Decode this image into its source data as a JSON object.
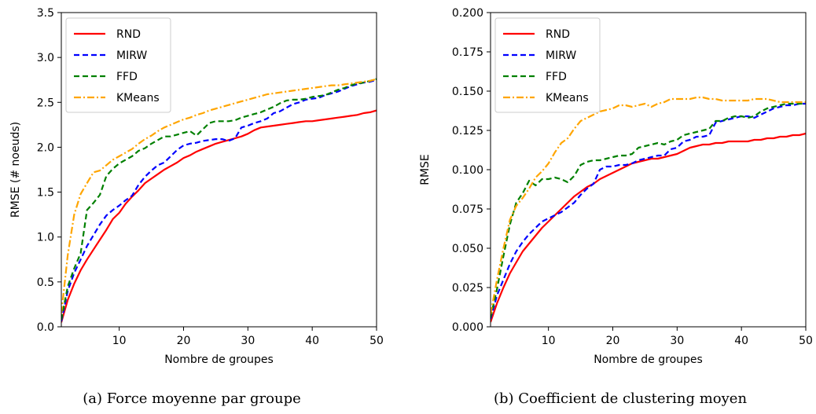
{
  "chart_data": [
    {
      "type": "line",
      "caption": "(a) Force moyenne par groupe",
      "xlabel": "Nombre de groupes",
      "ylabel": "RMSE (# noeuds)",
      "xlim": [
        1,
        50
      ],
      "ylim": [
        0,
        3.5
      ],
      "xticks": [
        "10",
        "20",
        "30",
        "40",
        "50"
      ],
      "yticks": [
        "0.0",
        "0.5",
        "1.0",
        "1.5",
        "2.0",
        "2.5",
        "3.0",
        "3.5"
      ],
      "legend_position": "top-left",
      "x": [
        1,
        2,
        3,
        4,
        5,
        6,
        7,
        8,
        9,
        10,
        11,
        12,
        13,
        14,
        15,
        16,
        17,
        18,
        19,
        20,
        21,
        22,
        23,
        24,
        25,
        26,
        27,
        28,
        29,
        30,
        31,
        32,
        33,
        34,
        35,
        36,
        37,
        38,
        39,
        40,
        41,
        42,
        43,
        44,
        45,
        46,
        47,
        48,
        49,
        50
      ],
      "series": [
        {
          "name": "RND",
          "color": "#ff0000",
          "dash": "solid",
          "values": [
            0.05,
            0.3,
            0.48,
            0.63,
            0.75,
            0.86,
            0.97,
            1.08,
            1.2,
            1.27,
            1.37,
            1.45,
            1.52,
            1.6,
            1.65,
            1.7,
            1.75,
            1.79,
            1.83,
            1.88,
            1.91,
            1.95,
            1.98,
            2.01,
            2.04,
            2.06,
            2.08,
            2.1,
            2.12,
            2.15,
            2.19,
            2.22,
            2.23,
            2.24,
            2.25,
            2.26,
            2.27,
            2.28,
            2.29,
            2.29,
            2.3,
            2.31,
            2.32,
            2.33,
            2.34,
            2.35,
            2.36,
            2.38,
            2.39,
            2.41
          ]
        },
        {
          "name": "MIRW",
          "color": "#0000ff",
          "dash": "dashed",
          "values": [
            0.06,
            0.4,
            0.6,
            0.75,
            0.9,
            1.02,
            1.14,
            1.24,
            1.3,
            1.35,
            1.41,
            1.46,
            1.58,
            1.67,
            1.74,
            1.8,
            1.83,
            1.9,
            1.97,
            2.02,
            2.04,
            2.05,
            2.07,
            2.08,
            2.09,
            2.09,
            2.07,
            2.1,
            2.22,
            2.24,
            2.27,
            2.29,
            2.32,
            2.38,
            2.4,
            2.44,
            2.48,
            2.5,
            2.53,
            2.54,
            2.55,
            2.58,
            2.6,
            2.62,
            2.65,
            2.68,
            2.7,
            2.72,
            2.73,
            2.75
          ]
        },
        {
          "name": "FFD",
          "color": "#008000",
          "dash": "dashed",
          "values": [
            0.08,
            0.45,
            0.65,
            0.82,
            1.3,
            1.38,
            1.47,
            1.68,
            1.76,
            1.82,
            1.86,
            1.9,
            1.96,
            1.99,
            2.04,
            2.08,
            2.12,
            2.12,
            2.14,
            2.16,
            2.18,
            2.13,
            2.2,
            2.27,
            2.29,
            2.29,
            2.29,
            2.3,
            2.33,
            2.35,
            2.37,
            2.39,
            2.42,
            2.45,
            2.49,
            2.52,
            2.53,
            2.53,
            2.54,
            2.56,
            2.57,
            2.58,
            2.61,
            2.64,
            2.66,
            2.69,
            2.71,
            2.72,
            2.74,
            2.76
          ]
        },
        {
          "name": "KMeans",
          "color": "#ffa500",
          "dash": "dashdot",
          "values": [
            0.15,
            0.8,
            1.25,
            1.48,
            1.6,
            1.72,
            1.74,
            1.8,
            1.86,
            1.9,
            1.94,
            1.98,
            2.04,
            2.09,
            2.13,
            2.18,
            2.22,
            2.25,
            2.28,
            2.31,
            2.33,
            2.36,
            2.38,
            2.41,
            2.43,
            2.45,
            2.47,
            2.49,
            2.51,
            2.53,
            2.55,
            2.57,
            2.59,
            2.6,
            2.61,
            2.62,
            2.63,
            2.64,
            2.65,
            2.66,
            2.67,
            2.68,
            2.69,
            2.69,
            2.7,
            2.71,
            2.72,
            2.73,
            2.74,
            2.76
          ]
        }
      ]
    },
    {
      "type": "line",
      "caption": "(b) Coefficient de clustering moyen",
      "xlabel": "Nombre de groupes",
      "ylabel": "RMSE",
      "xlim": [
        1,
        50
      ],
      "ylim": [
        0,
        0.2
      ],
      "xticks": [
        "10",
        "20",
        "30",
        "40",
        "50"
      ],
      "yticks": [
        "0.000",
        "0.025",
        "0.050",
        "0.075",
        "0.100",
        "0.125",
        "0.150",
        "0.175",
        "0.200"
      ],
      "legend_position": "top-left",
      "x": [
        1,
        2,
        3,
        4,
        5,
        6,
        7,
        8,
        9,
        10,
        11,
        12,
        13,
        14,
        15,
        16,
        17,
        18,
        19,
        20,
        21,
        22,
        23,
        24,
        25,
        26,
        27,
        28,
        29,
        30,
        31,
        32,
        33,
        34,
        35,
        36,
        37,
        38,
        39,
        40,
        41,
        42,
        43,
        44,
        45,
        46,
        47,
        48,
        49,
        50
      ],
      "series": [
        {
          "name": "RND",
          "color": "#ff0000",
          "dash": "solid",
          "values": [
            0.003,
            0.015,
            0.025,
            0.034,
            0.041,
            0.048,
            0.053,
            0.058,
            0.063,
            0.067,
            0.071,
            0.075,
            0.079,
            0.083,
            0.086,
            0.089,
            0.091,
            0.094,
            0.096,
            0.098,
            0.1,
            0.102,
            0.104,
            0.105,
            0.106,
            0.107,
            0.107,
            0.108,
            0.109,
            0.11,
            0.112,
            0.114,
            0.115,
            0.116,
            0.116,
            0.117,
            0.117,
            0.118,
            0.118,
            0.118,
            0.118,
            0.119,
            0.119,
            0.12,
            0.12,
            0.121,
            0.121,
            0.122,
            0.122,
            0.123
          ]
        },
        {
          "name": "MIRW",
          "color": "#0000ff",
          "dash": "dashed",
          "values": [
            0.005,
            0.02,
            0.03,
            0.04,
            0.048,
            0.054,
            0.059,
            0.063,
            0.067,
            0.069,
            0.071,
            0.073,
            0.076,
            0.079,
            0.084,
            0.088,
            0.091,
            0.1,
            0.102,
            0.102,
            0.103,
            0.103,
            0.104,
            0.106,
            0.107,
            0.108,
            0.109,
            0.109,
            0.113,
            0.114,
            0.118,
            0.119,
            0.121,
            0.121,
            0.122,
            0.13,
            0.131,
            0.132,
            0.133,
            0.134,
            0.134,
            0.133,
            0.135,
            0.137,
            0.139,
            0.14,
            0.141,
            0.141,
            0.142,
            0.142
          ]
        },
        {
          "name": "FFD",
          "color": "#008000",
          "dash": "dashed",
          "values": [
            0.006,
            0.024,
            0.045,
            0.065,
            0.079,
            0.085,
            0.093,
            0.09,
            0.094,
            0.094,
            0.095,
            0.094,
            0.092,
            0.096,
            0.103,
            0.105,
            0.106,
            0.106,
            0.107,
            0.108,
            0.109,
            0.109,
            0.11,
            0.114,
            0.115,
            0.116,
            0.117,
            0.116,
            0.118,
            0.119,
            0.122,
            0.123,
            0.124,
            0.125,
            0.126,
            0.131,
            0.131,
            0.133,
            0.134,
            0.134,
            0.133,
            0.134,
            0.137,
            0.139,
            0.14,
            0.141,
            0.142,
            0.142,
            0.142,
            0.142
          ]
        },
        {
          "name": "KMeans",
          "color": "#ffa500",
          "dash": "dashdot",
          "values": [
            0.008,
            0.03,
            0.05,
            0.068,
            0.077,
            0.082,
            0.088,
            0.095,
            0.099,
            0.104,
            0.111,
            0.117,
            0.12,
            0.126,
            0.131,
            0.133,
            0.135,
            0.137,
            0.138,
            0.139,
            0.141,
            0.141,
            0.14,
            0.141,
            0.142,
            0.14,
            0.142,
            0.143,
            0.145,
            0.145,
            0.145,
            0.145,
            0.146,
            0.146,
            0.145,
            0.145,
            0.144,
            0.144,
            0.144,
            0.144,
            0.144,
            0.145,
            0.145,
            0.145,
            0.144,
            0.143,
            0.143,
            0.143,
            0.143,
            0.143
          ]
        }
      ]
    }
  ]
}
